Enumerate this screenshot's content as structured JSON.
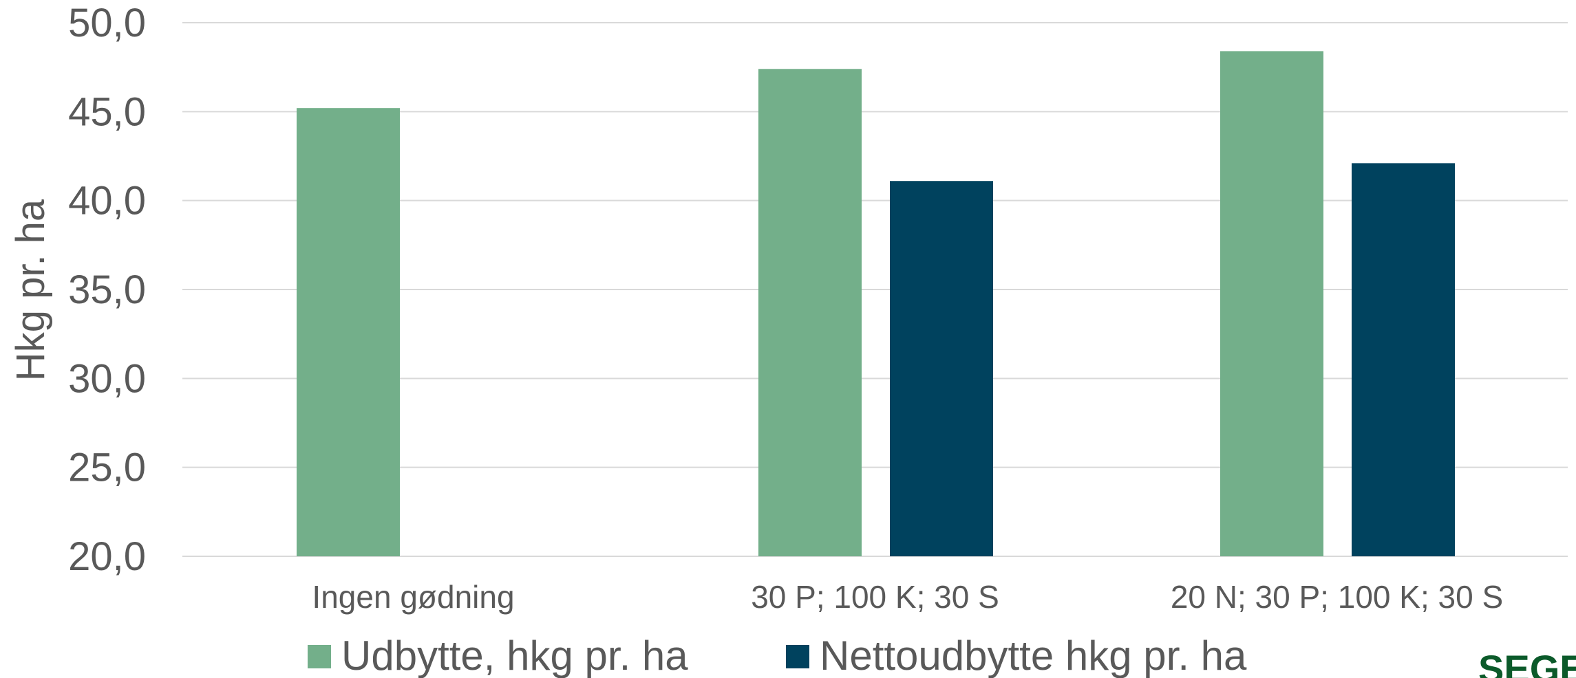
{
  "chart_data": {
    "type": "bar",
    "ylabel": "Hkg pr. ha",
    "ylim": [
      20,
      50
    ],
    "yticks": [
      20,
      25,
      30,
      35,
      40,
      45,
      50
    ],
    "ytick_labels": [
      "20,0",
      "25,0",
      "30,0",
      "35,0",
      "40,0",
      "45,0",
      "50,0"
    ],
    "categories": [
      "Ingen gødning",
      "30 P; 100 K; 30 S",
      "20 N; 30 P; 100 K; 30 S"
    ],
    "series": [
      {
        "name": "Udbytte, hkg pr. ha",
        "color": "#73af8a",
        "values": [
          45.2,
          47.4,
          48.4
        ]
      },
      {
        "name": "Nettoudbytte hkg pr. ha",
        "color": "#00425e",
        "values": [
          null,
          41.1,
          42.1
        ]
      }
    ],
    "grid": true,
    "legend_position": "bottom"
  },
  "logo": {
    "text": "SEGES"
  }
}
